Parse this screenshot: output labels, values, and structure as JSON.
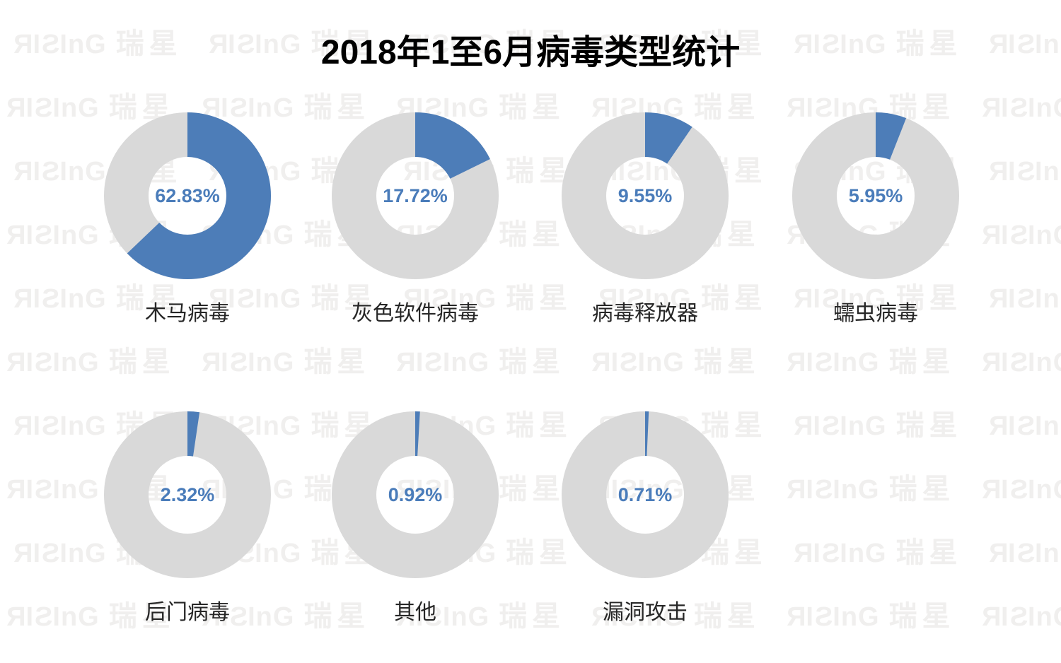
{
  "title": "2018年1至6月病毒类型统计",
  "watermark": {
    "brand_en": "RISING",
    "brand_cn": "瑞星",
    "color": "#f0efee"
  },
  "chart_data": {
    "type": "pie",
    "layout_hint": "seven donut small-multiples, 4 on top row + 3 on bottom row, slice starts at 12 o'clock clockwise, value label centered in hole, category label below",
    "title": "2018年1至6月病毒类型统计",
    "unit": "%",
    "colors": {
      "slice": "#4d7db8",
      "remainder": "#d9d9d9",
      "value_text": "#4a7cba",
      "label_text": "#262626",
      "title_text": "#000000"
    },
    "slices": [
      {
        "label": "木马病毒",
        "value": 62.83,
        "display": "62.83%"
      },
      {
        "label": "灰色软件病毒",
        "value": 17.72,
        "display": "17.72%"
      },
      {
        "label": "病毒释放器",
        "value": 9.55,
        "display": "9.55%"
      },
      {
        "label": "蠕虫病毒",
        "value": 5.95,
        "display": "5.95%"
      },
      {
        "label": "后门病毒",
        "value": 2.32,
        "display": "2.32%"
      },
      {
        "label": "其他",
        "value": 0.92,
        "display": "0.92%"
      },
      {
        "label": "漏洞攻击",
        "value": 0.71,
        "display": "0.71%"
      }
    ]
  }
}
